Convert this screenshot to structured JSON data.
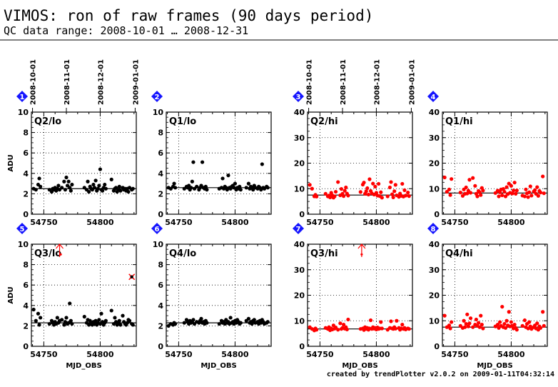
{
  "header": {
    "title": "VIMOS: ron of raw frames (90 days period)",
    "subtitle": "QC data range: 2008-10-01 … 2008-12-31"
  },
  "footer": {
    "credit": "created by trendPlotter v2.0.2 on 2009-01-11T04:32:14"
  },
  "colors": {
    "black": "#000000",
    "red": "#ff0000",
    "badge": "#1515ff",
    "ref_line": "#000000"
  },
  "chart_data": {
    "type": "scatter",
    "xlabel": "MJD_OBS",
    "ylabel": "ADU",
    "xlim": [
      54739,
      54832
    ],
    "x_ticks": [
      54750,
      54800
    ],
    "x_tick_labels": [
      "54750",
      "54800"
    ],
    "date_ticks": [
      {
        "mjd": 54740,
        "label": "2008-10-01"
      },
      {
        "mjd": 54770,
        "label": "2008-11-01"
      },
      {
        "mjd": 54800,
        "label": "2008-12-01"
      },
      {
        "mjd": 54831,
        "label": "2009-01-01"
      }
    ],
    "panels": [
      {
        "badge": "1",
        "label": "Q2/lo",
        "color": "black",
        "ylim": [
          0,
          10
        ],
        "y_ticks": [
          0,
          2,
          4,
          6,
          8,
          10
        ],
        "ref": 2.5,
        "show_dates": true,
        "x": [
          54741,
          54743,
          54745,
          54746,
          54747,
          54755,
          54757,
          54758,
          54759,
          54760,
          54761,
          54762,
          54763,
          54764,
          54766,
          54768,
          54769,
          54770,
          54771,
          54772,
          54773,
          54774,
          54775,
          54786,
          54788,
          54789,
          54790,
          54791,
          54792,
          54793,
          54794,
          54795,
          54796,
          54797,
          54798,
          54799,
          54800,
          54801,
          54802,
          54803,
          54804,
          54805,
          54810,
          54812,
          54813,
          54814,
          54815,
          54816,
          54817,
          54818,
          54820,
          54821,
          54822,
          54823,
          54824,
          54825,
          54826,
          54828,
          54829
        ],
        "y": [
          2.5,
          2.4,
          2.9,
          3.5,
          2.7,
          2.4,
          2.2,
          2.5,
          2.4,
          2.6,
          2.3,
          2.5,
          2.8,
          2.4,
          2.6,
          3.2,
          2.4,
          3.6,
          2.8,
          3.2,
          2.6,
          2.3,
          2.9,
          2.6,
          2.4,
          3.2,
          2.2,
          2.7,
          2.5,
          2.4,
          2.9,
          2.6,
          3.3,
          2.3,
          2.5,
          2.8,
          4.4,
          2.4,
          2.3,
          2.6,
          2.9,
          2.5,
          3.4,
          2.3,
          2.5,
          2.6,
          2.2,
          2.4,
          2.7,
          2.3,
          2.6,
          2.4,
          2.5,
          2.3,
          2.5,
          2.2,
          2.6,
          2.4,
          2.5
        ]
      },
      {
        "badge": "2",
        "label": "Q1/lo",
        "color": "black",
        "ylim": [
          0,
          10
        ],
        "y_ticks": [
          0,
          2,
          4,
          6,
          8,
          10
        ],
        "ref": 2.6,
        "show_dates": false,
        "x": [
          54741,
          54743,
          54745,
          54746,
          54747,
          54755,
          54757,
          54758,
          54759,
          54760,
          54761,
          54762,
          54763,
          54764,
          54766,
          54768,
          54769,
          54770,
          54771,
          54772,
          54773,
          54774,
          54775,
          54786,
          54788,
          54789,
          54790,
          54791,
          54792,
          54793,
          54794,
          54795,
          54796,
          54797,
          54798,
          54799,
          54800,
          54801,
          54802,
          54803,
          54804,
          54805,
          54810,
          54812,
          54813,
          54814,
          54815,
          54816,
          54817,
          54818,
          54820,
          54821,
          54822,
          54823,
          54824,
          54825,
          54826,
          54828,
          54829
        ],
        "y": [
          2.6,
          2.5,
          2.7,
          3.0,
          2.6,
          2.5,
          2.7,
          2.6,
          2.8,
          2.4,
          2.6,
          3.2,
          5.1,
          2.5,
          2.7,
          2.4,
          2.6,
          2.8,
          5.1,
          2.6,
          2.5,
          2.7,
          2.4,
          2.5,
          2.6,
          3.5,
          2.5,
          2.7,
          2.6,
          2.4,
          3.8,
          2.6,
          2.5,
          2.7,
          2.8,
          2.6,
          3.0,
          2.4,
          2.6,
          2.5,
          2.7,
          2.4,
          2.6,
          3.0,
          2.5,
          2.7,
          2.6,
          2.4,
          2.8,
          2.6,
          2.5,
          2.7,
          2.6,
          2.4,
          4.9,
          2.6,
          2.5,
          2.7,
          2.6
        ]
      },
      {
        "badge": "3",
        "label": "Q2/hi",
        "color": "red",
        "ylim": [
          0,
          40
        ],
        "y_ticks": [
          0,
          10,
          20,
          30,
          40
        ],
        "ref": 7.5,
        "show_dates": true,
        "x": [
          54741,
          54743,
          54745,
          54746,
          54747,
          54755,
          54757,
          54758,
          54759,
          54760,
          54761,
          54762,
          54763,
          54764,
          54766,
          54768,
          54769,
          54770,
          54771,
          54772,
          54773,
          54774,
          54775,
          54786,
          54788,
          54789,
          54790,
          54791,
          54792,
          54793,
          54794,
          54795,
          54796,
          54797,
          54798,
          54799,
          54800,
          54801,
          54802,
          54803,
          54804,
          54805,
          54810,
          54812,
          54813,
          54814,
          54815,
          54816,
          54817,
          54818,
          54820,
          54821,
          54822,
          54823,
          54824,
          54825,
          54826,
          54828,
          54829
        ],
        "y": [
          11.5,
          10.0,
          7.0,
          7.6,
          6.9,
          8.0,
          7.0,
          7.3,
          6.6,
          8.4,
          7.4,
          6.5,
          7.0,
          8.8,
          12.6,
          7.4,
          9.9,
          8.0,
          7.1,
          9.2,
          10.5,
          8.1,
          7.3,
          8.7,
          11.6,
          12.4,
          8.0,
          9.0,
          10.2,
          7.7,
          13.7,
          9.1,
          8.2,
          12.0,
          7.7,
          10.8,
          8.4,
          7.3,
          11.9,
          7.1,
          8.6,
          6.5,
          7.0,
          10.5,
          12.6,
          7.8,
          6.6,
          9.0,
          11.5,
          7.4,
          6.8,
          8.1,
          7.2,
          11.9,
          6.9,
          9.4,
          7.3,
          8.5,
          7.1
        ]
      },
      {
        "badge": "4",
        "label": "Q1/hi",
        "color": "red",
        "ylim": [
          0,
          40
        ],
        "y_ticks": [
          0,
          10,
          20,
          30,
          40
        ],
        "ref": 8.3,
        "show_dates": false,
        "x": [
          54741,
          54743,
          54745,
          54746,
          54747,
          54755,
          54757,
          54758,
          54759,
          54760,
          54761,
          54762,
          54763,
          54764,
          54766,
          54768,
          54769,
          54770,
          54771,
          54772,
          54773,
          54774,
          54775,
          54786,
          54788,
          54789,
          54790,
          54791,
          54792,
          54793,
          54794,
          54795,
          54796,
          54797,
          54798,
          54799,
          54800,
          54801,
          54802,
          54803,
          54804,
          54805,
          54810,
          54812,
          54813,
          54814,
          54815,
          54816,
          54817,
          54818,
          54820,
          54821,
          54822,
          54823,
          54824,
          54825,
          54826,
          54828,
          54829
        ],
        "y": [
          14.4,
          8.8,
          9.7,
          7.5,
          13.8,
          8.5,
          7.2,
          9.7,
          8.0,
          10.5,
          8.1,
          9.2,
          13.5,
          8.4,
          14.2,
          11.1,
          8.0,
          7.0,
          9.1,
          8.6,
          7.5,
          10.3,
          9.3,
          8.3,
          9.2,
          7.0,
          8.6,
          9.7,
          7.4,
          9.9,
          8.8,
          7.0,
          10.6,
          7.9,
          12.0,
          8.4,
          11.1,
          8.1,
          9.3,
          12.4,
          8.0,
          9.3,
          7.3,
          7.0,
          9.7,
          8.2,
          6.7,
          8.6,
          10.9,
          7.3,
          8.9,
          9.4,
          8.0,
          10.6,
          7.2,
          9.1,
          8.5,
          14.8,
          8.2
        ]
      },
      {
        "badge": "5",
        "label": "Q3/lo",
        "color": "black",
        "ylim": [
          0,
          10
        ],
        "y_ticks": [
          0,
          2,
          4,
          6,
          8,
          10
        ],
        "ref": 2.3,
        "show_dates": false,
        "x": [
          54741,
          54743,
          54745,
          54746,
          54747,
          54755,
          54757,
          54758,
          54759,
          54760,
          54761,
          54762,
          54763,
          54764,
          54766,
          54768,
          54769,
          54770,
          54771,
          54772,
          54773,
          54774,
          54775,
          54786,
          54788,
          54789,
          54790,
          54791,
          54792,
          54793,
          54794,
          54795,
          54796,
          54797,
          54798,
          54799,
          54800,
          54801,
          54802,
          54803,
          54804,
          54805,
          54810,
          54812,
          54813,
          54814,
          54815,
          54816,
          54817,
          54818,
          54820,
          54821,
          54822,
          54823,
          54824,
          54825,
          54826,
          54828,
          54829
        ],
        "y": [
          3.6,
          2.5,
          3.2,
          2.1,
          2.8,
          2.2,
          2.5,
          2.3,
          2.1,
          2.4,
          2.2,
          2.8,
          2.3,
          2.5,
          2.6,
          2.1,
          2.4,
          2.8,
          2.2,
          2.3,
          4.2,
          2.5,
          2.2,
          2.9,
          2.3,
          2.6,
          2.1,
          2.5,
          2.3,
          2.1,
          2.4,
          2.2,
          2.5,
          2.1,
          2.3,
          2.6,
          2.2,
          3.2,
          2.4,
          2.1,
          2.3,
          2.5,
          3.5,
          2.2,
          2.8,
          2.4,
          2.1,
          2.3,
          2.5,
          2.1,
          3.0,
          2.4,
          2.2,
          2.1,
          2.3,
          2.6,
          2.5,
          2.2,
          2.1
        ],
        "outliers": [
          {
            "x": 54764,
            "y": 10,
            "marker": "arrow"
          },
          {
            "x": 54765,
            "y": 9.0,
            "marker": "tick"
          },
          {
            "x": 54828,
            "y": 6.8,
            "marker": "star"
          }
        ]
      },
      {
        "badge": "6",
        "label": "Q4/lo",
        "color": "black",
        "ylim": [
          0,
          10
        ],
        "y_ticks": [
          0,
          2,
          4,
          6,
          8,
          10
        ],
        "ref": 2.3,
        "show_dates": false,
        "x": [
          54741,
          54743,
          54745,
          54746,
          54747,
          54755,
          54757,
          54758,
          54759,
          54760,
          54761,
          54762,
          54763,
          54764,
          54766,
          54768,
          54769,
          54770,
          54771,
          54772,
          54773,
          54774,
          54775,
          54786,
          54788,
          54789,
          54790,
          54791,
          54792,
          54793,
          54794,
          54795,
          54796,
          54797,
          54798,
          54799,
          54800,
          54801,
          54802,
          54803,
          54804,
          54805,
          54810,
          54812,
          54813,
          54814,
          54815,
          54816,
          54817,
          54818,
          54820,
          54821,
          54822,
          54823,
          54824,
          54825,
          54826,
          54828,
          54829
        ],
        "y": [
          2.0,
          2.2,
          2.1,
          2.3,
          2.2,
          2.3,
          2.6,
          2.4,
          2.2,
          2.5,
          2.3,
          2.4,
          2.6,
          2.2,
          2.4,
          2.3,
          2.5,
          2.7,
          2.3,
          2.4,
          2.2,
          2.5,
          2.3,
          2.2,
          2.5,
          2.3,
          2.4,
          2.2,
          2.6,
          2.3,
          2.4,
          2.2,
          2.8,
          2.3,
          2.4,
          2.2,
          2.5,
          2.3,
          2.6,
          2.4,
          2.2,
          2.3,
          2.5,
          2.7,
          2.3,
          2.4,
          2.2,
          2.5,
          2.6,
          2.3,
          2.4,
          2.2,
          2.5,
          2.3,
          2.6,
          2.4,
          2.2,
          2.3,
          2.4
        ]
      },
      {
        "badge": "7",
        "label": "Q3/hi",
        "color": "red",
        "ylim": [
          0,
          40
        ],
        "y_ticks": [
          0,
          10,
          20,
          30,
          40
        ],
        "ref": 6.8,
        "show_dates": false,
        "x": [
          54741,
          54743,
          54745,
          54746,
          54747,
          54755,
          54757,
          54758,
          54759,
          54760,
          54761,
          54762,
          54763,
          54764,
          54766,
          54768,
          54769,
          54770,
          54771,
          54772,
          54773,
          54774,
          54775,
          54786,
          54788,
          54789,
          54790,
          54791,
          54792,
          54793,
          54794,
          54795,
          54796,
          54797,
          54798,
          54799,
          54800,
          54801,
          54802,
          54803,
          54804,
          54805,
          54810,
          54812,
          54813,
          54814,
          54815,
          54816,
          54817,
          54818,
          54820,
          54821,
          54822,
          54823,
          54824,
          54825,
          54826,
          54828,
          54829
        ],
        "y": [
          7.5,
          6.8,
          6.2,
          7.0,
          6.5,
          7.2,
          6.8,
          7.5,
          6.3,
          7.0,
          6.6,
          8.2,
          6.9,
          7.4,
          6.5,
          9.0,
          6.8,
          7.2,
          8.5,
          6.9,
          7.5,
          6.6,
          10.5,
          6.8,
          7.0,
          6.4,
          7.5,
          6.8,
          7.2,
          6.5,
          7.0,
          10.2,
          6.8,
          7.5,
          6.9,
          7.2,
          6.6,
          7.4,
          6.8,
          7.0,
          9.5,
          7.0,
          6.5,
          7.2,
          9.8,
          7.0,
          6.8,
          7.5,
          6.9,
          10.0,
          7.2,
          6.5,
          7.0,
          8.5,
          6.8,
          7.2,
          6.6,
          7.0,
          6.8
        ],
        "outliers": [
          {
            "x": 54787,
            "y": 40,
            "marker": "arrow"
          },
          {
            "x": 54787,
            "y": 36.0,
            "marker": "tick"
          }
        ]
      },
      {
        "badge": "8",
        "label": "Q4/hi",
        "color": "red",
        "ylim": [
          0,
          40
        ],
        "y_ticks": [
          0,
          10,
          20,
          30,
          40
        ],
        "ref": 7.5,
        "show_dates": false,
        "x": [
          54741,
          54743,
          54745,
          54746,
          54747,
          54755,
          54757,
          54758,
          54759,
          54760,
          54761,
          54762,
          54763,
          54764,
          54766,
          54768,
          54769,
          54770,
          54771,
          54772,
          54773,
          54774,
          54775,
          54786,
          54788,
          54789,
          54790,
          54791,
          54792,
          54793,
          54794,
          54795,
          54796,
          54797,
          54798,
          54799,
          54800,
          54801,
          54802,
          54803,
          54804,
          54805,
          54810,
          54812,
          54813,
          54814,
          54815,
          54816,
          54817,
          54818,
          54820,
          54821,
          54822,
          54823,
          54824,
          54825,
          54826,
          54828,
          54829
        ],
        "y": [
          12.0,
          7.5,
          8.2,
          7.0,
          9.5,
          8.0,
          7.2,
          10.0,
          7.5,
          8.8,
          12.5,
          7.8,
          9.0,
          11.0,
          7.5,
          8.5,
          10.5,
          8.0,
          9.2,
          7.5,
          12.0,
          8.5,
          7.0,
          7.8,
          8.5,
          7.2,
          9.5,
          8.0,
          15.5,
          7.5,
          8.8,
          7.2,
          10.0,
          8.2,
          13.5,
          7.8,
          9.5,
          8.0,
          7.0,
          8.5,
          7.2,
          6.5,
          8.0,
          10.2,
          7.5,
          8.8,
          7.0,
          9.5,
          7.8,
          6.8,
          7.5,
          8.2,
          7.0,
          9.0,
          6.5,
          7.8,
          7.2,
          13.5,
          8.0
        ]
      }
    ]
  }
}
